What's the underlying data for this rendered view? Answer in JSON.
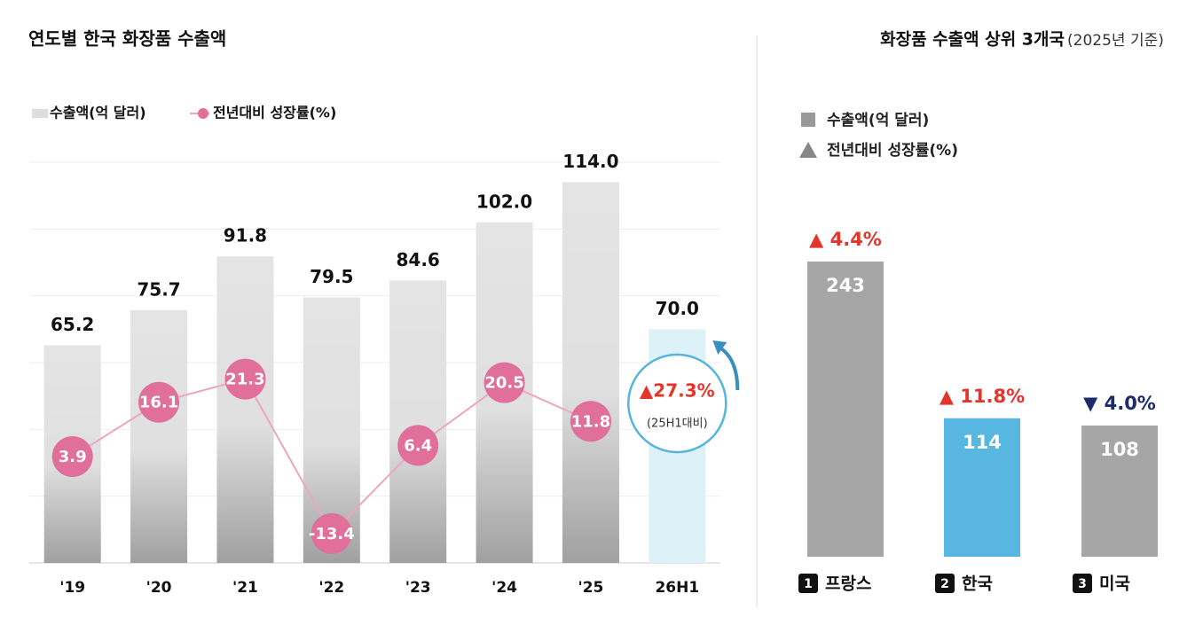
{
  "chart_data": [
    {
      "type": "bar_line",
      "title": "연도별 한국 화장품 수출액",
      "categories": [
        "'19",
        "'20",
        "'21",
        "'22",
        "'23",
        "'24",
        "'25",
        "26H1"
      ],
      "series": [
        {
          "name": "수출액(억 달러)",
          "colors": [
            "#e4e4e4",
            "#e4e4e4",
            "#e4e4e4",
            "#e4e4e4",
            "#e4e4e4",
            "#e4e4e4",
            "#e4e4e4",
            "#dcf1f8"
          ],
          "values": [
            65.2,
            75.7,
            91.8,
            79.5,
            84.6,
            102.0,
            114.0,
            70.0
          ],
          "value_labels": [
            "65.2",
            "75.7",
            "91.8",
            "79.5",
            "84.6",
            "102.0",
            "114.0",
            "70.0"
          ]
        },
        {
          "name": "전년대비 성장률(%)",
          "color": "#e0709a",
          "axis": "y2",
          "values": [
            3.9,
            16.1,
            21.3,
            -13.4,
            6.4,
            20.5,
            11.8,
            null
          ]
        }
      ],
      "ylim": [
        0,
        120
      ],
      "yticks": [
        0,
        20,
        40,
        60,
        80,
        100,
        120
      ],
      "grid": true,
      "y2lim": [
        -20,
        70
      ],
      "annotation": {
        "text": "▲27.3%",
        "note": "(25H1대비)"
      }
    },
    {
      "type": "bar",
      "title": "화장품 수출액 상위 3개국",
      "subtitle": "(2025년 기준)",
      "legend": [
        "수출액(억 달러)",
        "전년대비 성장률(%)"
      ],
      "ranks": [
        1,
        2,
        3
      ],
      "categories": [
        "프랑스",
        "한국",
        "미국"
      ],
      "colors": [
        "#a6a6a6",
        "#58b7e0",
        "#a6a6a6"
      ],
      "values": [
        243,
        114,
        108
      ],
      "ylim": [
        0,
        243
      ],
      "growth": [
        4.4,
        11.8,
        -4.0
      ],
      "growth_labels": [
        "▲ 4.4%",
        "▲ 11.8%",
        "▼ 4.0%"
      ],
      "growth_colors": [
        "#e5352b",
        "#e5352b",
        "#1b2b6b"
      ]
    }
  ]
}
